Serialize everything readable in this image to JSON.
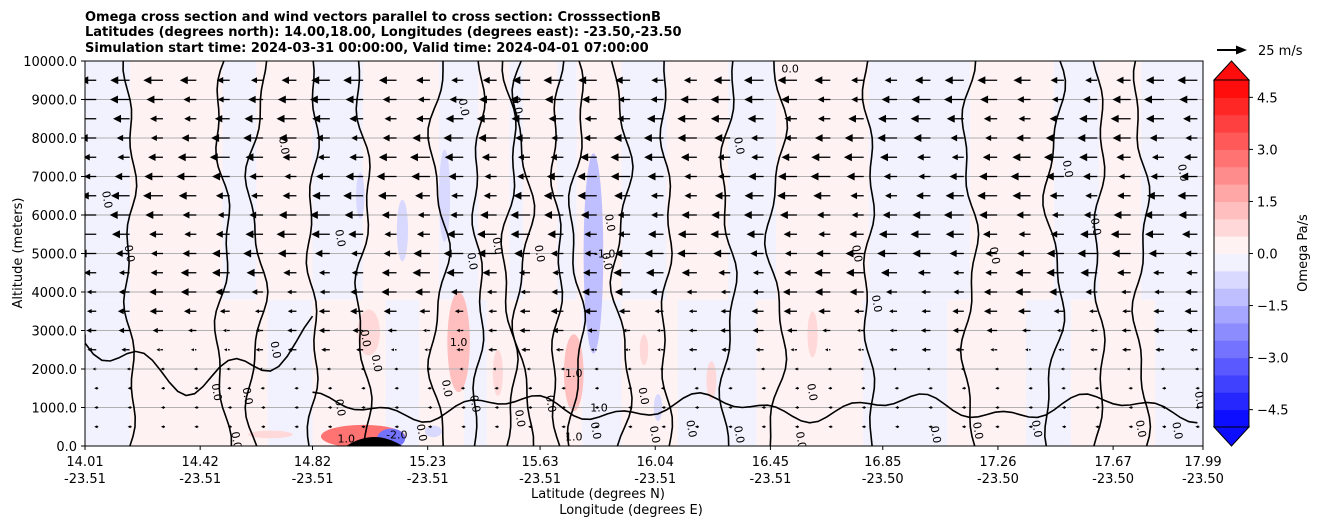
{
  "chart_data": {
    "type": "contour",
    "title_lines": [
      "Omega cross section and wind vectors parallel to cross section: CrosssectionB",
      "Latitudes (degrees north): 14.00,18.00, Longitudes (degrees east): -23.50,-23.50",
      "Simulation start time: 2024-03-31 00:00:00, Valid time: 2024-04-01 07:00:00"
    ],
    "ylabel": "Altitude (meters)",
    "xlabel_line1": "Latitude (degrees N)",
    "xlabel_line2": "Longitude (degrees E)",
    "ylim": [
      0,
      10000
    ],
    "y_ticks": [
      "0.0",
      "1000.0",
      "2000.0",
      "3000.0",
      "4000.0",
      "5000.0",
      "6000.0",
      "7000.0",
      "8000.0",
      "9000.0",
      "10000.0"
    ],
    "y_tick_values": [
      0,
      1000,
      2000,
      3000,
      4000,
      5000,
      6000,
      7000,
      8000,
      9000,
      10000
    ],
    "x_ticks": [
      {
        "lat": "14.01",
        "lon": "-23.51"
      },
      {
        "lat": "14.42",
        "lon": "-23.51"
      },
      {
        "lat": "14.82",
        "lon": "-23.51"
      },
      {
        "lat": "15.23",
        "lon": "-23.51"
      },
      {
        "lat": "15.63",
        "lon": "-23.51"
      },
      {
        "lat": "16.04",
        "lon": "-23.51"
      },
      {
        "lat": "16.45",
        "lon": "-23.51"
      },
      {
        "lat": "16.85",
        "lon": "-23.50"
      },
      {
        "lat": "17.26",
        "lon": "-23.50"
      },
      {
        "lat": "17.67",
        "lon": "-23.50"
      },
      {
        "lat": "17.99",
        "lon": "-23.50"
      }
    ],
    "x_tick_values": [
      14.01,
      14.42,
      14.82,
      15.23,
      15.63,
      16.04,
      16.45,
      16.85,
      17.26,
      17.67,
      17.99
    ],
    "xlim": [
      14.01,
      17.99
    ],
    "colorbar": {
      "label": "Omega Pa/s",
      "range": [
        -5.0,
        5.0
      ],
      "tick_labels": [
        "4.5",
        "3.0",
        "1.5",
        "0.0",
        "−1.5",
        "−3.0",
        "−4.5"
      ],
      "tick_values": [
        4.5,
        3.0,
        1.5,
        0.0,
        -1.5,
        -3.0,
        -4.5
      ],
      "levels": 20,
      "positive_color": "#ff0000",
      "negative_color": "#0000ff",
      "neutral_color": "#ffffff"
    },
    "quiver_key": {
      "label": "25 m/s",
      "speed": 25
    },
    "zero_contour_labels": [
      {
        "text": "0.0",
        "lat": 15.55,
        "alt": 8850
      },
      {
        "text": "0.0",
        "lat": 15.36,
        "alt": 8800
      },
      {
        "text": "0.0",
        "lat": 14.72,
        "alt": 7800
      },
      {
        "text": "0.0",
        "lat": 14.09,
        "alt": 6400
      },
      {
        "text": "0.0",
        "lat": 14.17,
        "alt": 5000
      },
      {
        "text": "0.0",
        "lat": 14.92,
        "alt": 5400
      },
      {
        "text": "0.0",
        "lat": 15.39,
        "alt": 4800
      },
      {
        "text": "0.0",
        "lat": 15.48,
        "alt": 5200
      },
      {
        "text": "0.0",
        "lat": 15.63,
        "alt": 5000
      },
      {
        "text": "0.0",
        "lat": 15.88,
        "alt": 5800
      },
      {
        "text": "0.0",
        "lat": 15.87,
        "alt": 4800
      },
      {
        "text": "0.0",
        "lat": 16.34,
        "alt": 7800
      },
      {
        "text": "0.0",
        "lat": 16.52,
        "alt": 9800
      },
      {
        "text": "0.0",
        "lat": 16.76,
        "alt": 5000
      },
      {
        "text": "0.0",
        "lat": 16.83,
        "alt": 3700
      },
      {
        "text": "0.0",
        "lat": 17.25,
        "alt": 4950
      },
      {
        "text": "0.0",
        "lat": 17.51,
        "alt": 7200
      },
      {
        "text": "0.0",
        "lat": 17.92,
        "alt": 7100
      },
      {
        "text": "0.0",
        "lat": 17.61,
        "alt": 5700
      },
      {
        "text": "0.0",
        "lat": 14.69,
        "alt": 2500
      },
      {
        "text": "0.0",
        "lat": 14.48,
        "alt": 1400
      },
      {
        "text": "0.0",
        "lat": 15.01,
        "alt": 2800
      },
      {
        "text": "0.0",
        "lat": 15.05,
        "alt": 2150
      },
      {
        "text": "0.0",
        "lat": 14.92,
        "alt": 1000
      },
      {
        "text": "0.0",
        "lat": 15.3,
        "alt": 1500
      },
      {
        "text": "0.0",
        "lat": 15.21,
        "alt": 350
      },
      {
        "text": "0.0",
        "lat": 15.4,
        "alt": 1100
      },
      {
        "text": "0.0",
        "lat": 15.56,
        "alt": 720
      },
      {
        "text": "0.0",
        "lat": 15.67,
        "alt": 1100
      },
      {
        "text": "0.0",
        "lat": 15.83,
        "alt": 400
      },
      {
        "text": "0.0",
        "lat": 16.0,
        "alt": 1300
      },
      {
        "text": "0.0",
        "lat": 16.04,
        "alt": 300
      },
      {
        "text": "0.0",
        "lat": 16.17,
        "alt": 450
      },
      {
        "text": "0.0",
        "lat": 16.34,
        "alt": 300
      },
      {
        "text": "0.0",
        "lat": 16.6,
        "alt": 1400
      },
      {
        "text": "0.0",
        "lat": 16.56,
        "alt": 150
      },
      {
        "text": "0.0",
        "lat": 17.04,
        "alt": 300
      },
      {
        "text": "0.0",
        "lat": 17.19,
        "alt": 400
      },
      {
        "text": "0.0",
        "lat": 17.4,
        "alt": 450
      },
      {
        "text": "0.0",
        "lat": 17.77,
        "alt": 450
      },
      {
        "text": "0.0",
        "lat": 17.9,
        "alt": 400
      },
      {
        "text": "0.0",
        "lat": 17.98,
        "alt": 1200
      },
      {
        "text": "0.0",
        "lat": 14.59,
        "alt": 1300
      },
      {
        "text": "0.0",
        "lat": 14.55,
        "alt": 150
      }
    ],
    "one_contour_labels": [
      {
        "text": "1.0",
        "lat": 15.34,
        "alt": 2700
      },
      {
        "text": "1.0",
        "lat": 15.75,
        "alt": 1900
      },
      {
        "text": "1.0",
        "lat": 15.84,
        "alt": 1000
      },
      {
        "text": "1.0",
        "lat": 15.75,
        "alt": 250
      },
      {
        "text": "1.0",
        "lat": 14.94,
        "alt": 200
      }
    ],
    "neg_contour_labels": [
      {
        "text": "-1.0",
        "lat": 15.86,
        "alt": 5000
      },
      {
        "text": "-2.0",
        "lat": 15.12,
        "alt": 300
      }
    ],
    "omega_features": [
      {
        "lat": 15.0,
        "alt": 250,
        "w": 0.15,
        "h": 300,
        "value": 2.6
      },
      {
        "lat": 15.1,
        "alt": 200,
        "w": 0.05,
        "h": 250,
        "value": -3.0
      },
      {
        "lat": 15.34,
        "alt": 2700,
        "w": 0.04,
        "h": 1300,
        "value": 1.2
      },
      {
        "lat": 15.75,
        "alt": 1900,
        "w": 0.035,
        "h": 1000,
        "value": 1.2
      },
      {
        "lat": 15.02,
        "alt": 2950,
        "w": 0.04,
        "h": 600,
        "value": 0.8
      },
      {
        "lat": 15.82,
        "alt": 5000,
        "w": 0.035,
        "h": 2600,
        "value": -1.2
      },
      {
        "lat": 15.14,
        "alt": 5600,
        "w": 0.02,
        "h": 800,
        "value": -0.6
      },
      {
        "lat": 15.29,
        "alt": 6500,
        "w": 0.02,
        "h": 1200,
        "value": -0.8
      },
      {
        "lat": 14.99,
        "alt": 6500,
        "w": 0.015,
        "h": 600,
        "value": -0.6
      },
      {
        "lat": 16.24,
        "alt": 1700,
        "w": 0.018,
        "h": 500,
        "value": 0.7
      },
      {
        "lat": 16.6,
        "alt": 2900,
        "w": 0.018,
        "h": 600,
        "value": 0.7
      },
      {
        "lat": 16.05,
        "alt": 1000,
        "w": 0.015,
        "h": 350,
        "value": -0.7
      },
      {
        "lat": 15.48,
        "alt": 1900,
        "w": 0.018,
        "h": 600,
        "value": 0.8
      },
      {
        "lat": 16.0,
        "alt": 2500,
        "w": 0.015,
        "h": 400,
        "value": 0.7
      },
      {
        "lat": 14.67,
        "alt": 300,
        "w": 0.08,
        "h": 100,
        "value": 0.6
      },
      {
        "lat": 15.25,
        "alt": 380,
        "w": 0.03,
        "h": 150,
        "value": -0.7
      }
    ]
  }
}
